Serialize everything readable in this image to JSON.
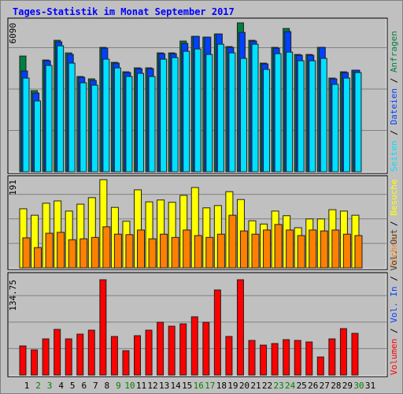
{
  "chart_data": [
    {
      "type": "bar",
      "title": "Tages-Statistik im Monat September 2017",
      "ylim": [
        0,
        6090
      ],
      "yticks": [
        6090
      ],
      "grid": true,
      "legend_separator": " / ",
      "series": [
        {
          "name": "Anfragen",
          "color": "#008040",
          "values": [
            4733,
            3317,
            4572,
            5377,
            4862,
            3896,
            3800,
            5088,
            4476,
            4089,
            4250,
            4250,
            4862,
            4862,
            5345,
            5538,
            5506,
            5635,
            5120,
            6090,
            5377,
            4444,
            5088,
            5860,
            4798,
            4798,
            5088,
            3832,
            4089,
            4154,
            null
          ]
        },
        {
          "name": "Dateien",
          "color": "#0040ff",
          "values": [
            4122,
            3220,
            4540,
            5313,
            4798,
            3864,
            3735,
            5055,
            4444,
            4057,
            4218,
            4218,
            4830,
            4830,
            5249,
            5538,
            5506,
            5635,
            5088,
            5699,
            5345,
            4411,
            5055,
            5732,
            4766,
            4766,
            5088,
            3800,
            4057,
            4154,
            null
          ]
        },
        {
          "name": "Seiten",
          "color": "#00e0ff",
          "values": [
            3832,
            2898,
            4347,
            5152,
            4444,
            3639,
            3542,
            4605,
            4250,
            3896,
            4025,
            3896,
            4605,
            4669,
            4927,
            5023,
            4798,
            5216,
            4862,
            4637,
            5216,
            4186,
            4830,
            4894,
            4540,
            4540,
            4637,
            3574,
            3832,
            4057,
            null
          ]
        }
      ]
    },
    {
      "type": "bar",
      "ylim": [
        0,
        191
      ],
      "yticks": [
        191
      ],
      "grid": true,
      "legend_separator": " / ",
      "series": [
        {
          "name": "Besuche",
          "color": "#ffff00",
          "values": [
            128,
            114,
            140,
            145,
            123,
            138,
            152,
            191,
            131,
            101,
            169,
            143,
            147,
            142,
            157,
            174,
            130,
            135,
            165,
            148,
            102,
            95,
            123,
            113,
            87,
            106,
            106,
            126,
            123,
            114,
            null
          ]
        },
        {
          "name": "Rechner",
          "color": "#ff8000",
          "values": [
            65,
            44,
            75,
            77,
            61,
            63,
            66,
            89,
            73,
            72,
            82,
            63,
            73,
            66,
            82,
            70,
            66,
            73,
            114,
            80,
            73,
            82,
            94,
            82,
            70,
            82,
            80,
            82,
            73,
            70,
            null
          ]
        }
      ]
    },
    {
      "type": "bar",
      "ylim": [
        0,
        134.75
      ],
      "yticks": [
        134.75
      ],
      "grid": true,
      "legend_separator": " / ",
      "categories": [
        "1",
        "2",
        "3",
        "4",
        "5",
        "6",
        "7",
        "8",
        "9",
        "10",
        "11",
        "12",
        "13",
        "14",
        "15",
        "16",
        "17",
        "18",
        "19",
        "20",
        "21",
        "22",
        "23",
        "24",
        "25",
        "26",
        "27",
        "28",
        "29",
        "30",
        "31"
      ],
      "category_colors": [
        "#000000",
        "#008000",
        "#008000",
        "#000000",
        "#000000",
        "#000000",
        "#000000",
        "#000000",
        "#008000",
        "#008000",
        "#000000",
        "#000000",
        "#000000",
        "#000000",
        "#000000",
        "#008000",
        "#008000",
        "#000000",
        "#000000",
        "#000000",
        "#000000",
        "#000000",
        "#008000",
        "#008000",
        "#000000",
        "#000000",
        "#000000",
        "#000000",
        "#000000",
        "#008000",
        "#000000"
      ],
      "series": [
        {
          "name": "Volumen",
          "color": "#ff0000",
          "values": [
            41.2,
            35.6,
            51.2,
            64.6,
            51.2,
            57.9,
            63.5,
            134.75,
            54.6,
            34.5,
            55.7,
            63.5,
            74.6,
            69.1,
            72.4,
            82.4,
            74.6,
            120.3,
            54.6,
            134.75,
            49.0,
            42.3,
            44.6,
            50.1,
            49.0,
            46.8,
            25.6,
            51.2,
            65.7,
            59.0,
            null
          ]
        }
      ],
      "legend_only": [
        {
          "name": "Vol. In",
          "color": "#0040ff"
        },
        {
          "name": "Vol. Out",
          "color": "#404040"
        }
      ]
    }
  ]
}
